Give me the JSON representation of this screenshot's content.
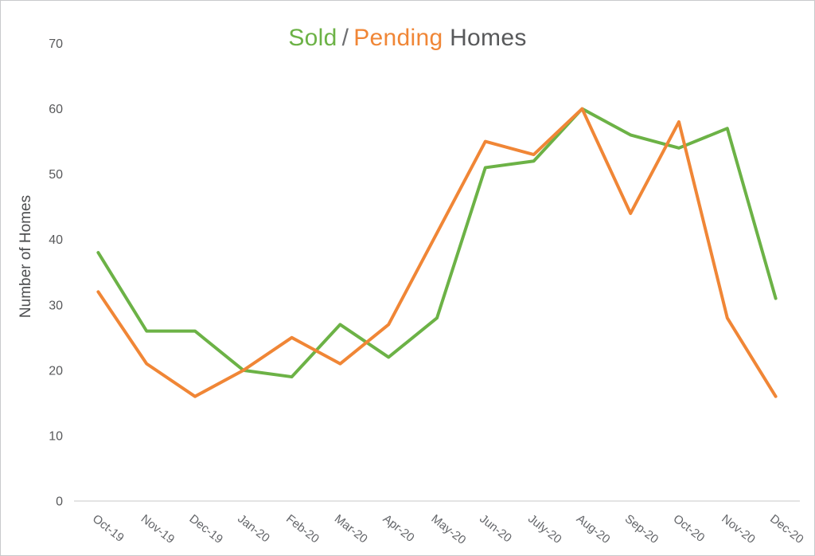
{
  "title": {
    "sold": "Sold",
    "separator": "/",
    "pending": "Pending",
    "homes": "Homes"
  },
  "colors": {
    "sold": "#6cb246",
    "pending": "#f08636",
    "homes_text": "#58595b",
    "separator_text": "#6d6e71",
    "axis_text": "#58595b",
    "axis_line": "#dcdcdc"
  },
  "y_axis": {
    "title": "Number of Homes",
    "tick_labels": [
      "0",
      "10",
      "20",
      "30",
      "40",
      "50",
      "60",
      "70"
    ]
  },
  "chart_data": {
    "type": "line",
    "title": "Sold / Pending Homes",
    "xlabel": "",
    "ylabel": "Number of Homes",
    "ylim": [
      0,
      70
    ],
    "yticks": [
      0,
      10,
      20,
      30,
      40,
      50,
      60,
      70
    ],
    "grid": false,
    "legend_position": "title-colored-words",
    "categories": [
      "Oct-19",
      "Nov-19",
      "Dec-19",
      "Jan-20",
      "Feb-20",
      "Mar-20",
      "Apr-20",
      "May-20",
      "Jun-20",
      "July-20",
      "Aug-20",
      "Sep-20",
      "Oct-20",
      "Nov-20",
      "Dec-20"
    ],
    "series": [
      {
        "name": "Sold",
        "color": "#6cb246",
        "values": [
          38,
          26,
          26,
          20,
          19,
          27,
          22,
          28,
          51,
          52,
          60,
          56,
          54,
          57,
          31
        ]
      },
      {
        "name": "Pending",
        "color": "#f08636",
        "values": [
          32,
          21,
          16,
          20,
          25,
          21,
          27,
          41,
          55,
          53,
          60,
          44,
          58,
          28,
          16
        ]
      }
    ]
  }
}
